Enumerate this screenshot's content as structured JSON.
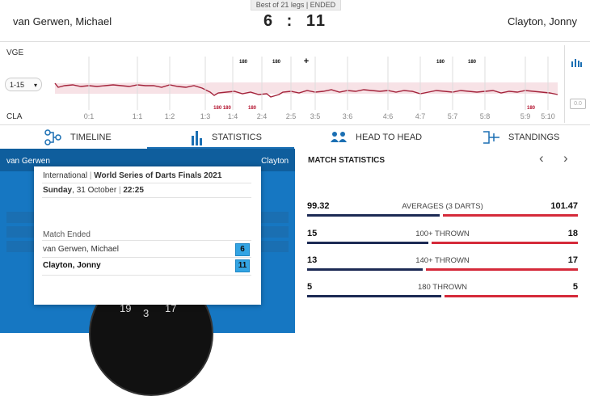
{
  "header": {
    "legs_info": "Best of 21 legs | ENDED",
    "player1": "van Gerwen, Michael",
    "player2": "Clayton, Jonny",
    "score1": "6",
    "score_sep": ":",
    "score2": "11"
  },
  "momentum": {
    "top_label": "VGE",
    "bottom_label": "CLA",
    "range": "1-15",
    "x_ticks": [
      "0:1",
      "1:1",
      "1:2",
      "1:3",
      "1:4",
      "2:4",
      "2:5",
      "3:5",
      "3:6",
      "4:6",
      "4:7",
      "5:7",
      "5:8",
      "5:9",
      "5:10"
    ],
    "top_markers": [
      "180",
      "180",
      "+",
      "180",
      "180"
    ],
    "bottom_markers": [
      "180 180",
      "180",
      "180"
    ],
    "zoom_label": "0.0"
  },
  "tabs": [
    {
      "label": "TIMELINE",
      "icon": "timeline-icon"
    },
    {
      "label": "STATISTICS",
      "icon": "bar-chart-icon"
    },
    {
      "label": "HEAD TO HEAD",
      "icon": "head-to-head-icon"
    },
    {
      "label": "STANDINGS",
      "icon": "bracket-icon"
    }
  ],
  "court": {
    "left_name": "van Gerwen",
    "right_name": "Clayton",
    "board_numbers": [
      "19",
      "3",
      "17"
    ]
  },
  "popup": {
    "competition": "International",
    "event": "World Series of Darts Finals 2021",
    "day": "Sunday",
    "date": "31 October",
    "time": "22:25",
    "status": "Match Ended",
    "player1": "van Gerwen, Michael",
    "player2": "Clayton, Jonny",
    "score1": "6",
    "score2": "11"
  },
  "stats": {
    "title": "MATCH STATISTICS",
    "rows": [
      {
        "label": "AVERAGES (3 DARTS)",
        "left": "99.32",
        "right": "101.47",
        "left_frac": 0.495,
        "right_frac": 0.505
      },
      {
        "label": "100+ THROWN",
        "left": "15",
        "right": "18",
        "left_frac": 0.455,
        "right_frac": 0.545
      },
      {
        "label": "140+ THROWN",
        "left": "13",
        "right": "17",
        "left_frac": 0.433,
        "right_frac": 0.567
      },
      {
        "label": "180 THROWN",
        "left": "5",
        "right": "5",
        "left_frac": 0.5,
        "right_frac": 0.5
      }
    ]
  },
  "colors": {
    "accent": "#1b6fb3",
    "player1_bar": "#1c2a54",
    "player2_bar": "#d52a3a",
    "court_blue": "#1677c2",
    "momentum_line": "#a3223a"
  }
}
